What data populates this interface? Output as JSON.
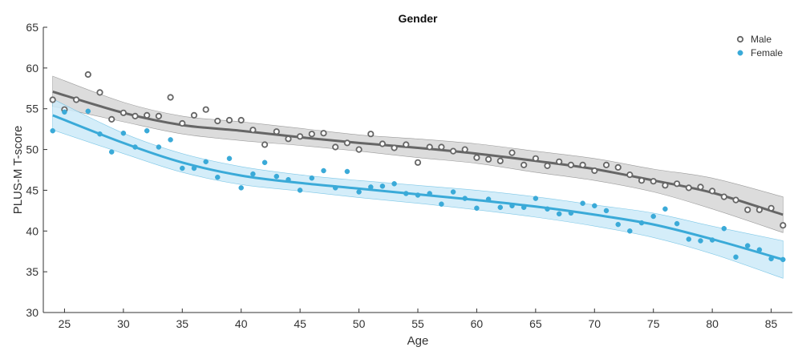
{
  "chart_data": {
    "type": "scatter",
    "title": "Gender",
    "xlabel": "Age",
    "ylabel": "PLUS-M T-score",
    "xlim": [
      23.2,
      86.8
    ],
    "ylim": [
      30,
      65
    ],
    "xticks": [
      25,
      30,
      35,
      40,
      45,
      50,
      55,
      60,
      65,
      70,
      75,
      80,
      85
    ],
    "yticks": [
      30,
      35,
      40,
      45,
      50,
      55,
      60,
      65
    ],
    "grid": false,
    "legend_position": "top-right",
    "series": [
      {
        "name": "Male",
        "color": "#666666",
        "band_color": "#d6d6d6",
        "marker": "hollow-circle",
        "points": [
          [
            24,
            56.1
          ],
          [
            25,
            54.9
          ],
          [
            26,
            56.1
          ],
          [
            27,
            59.2
          ],
          [
            28,
            57.0
          ],
          [
            29,
            53.7
          ],
          [
            30,
            54.5
          ],
          [
            31,
            54.1
          ],
          [
            32,
            54.2
          ],
          [
            33,
            54.1
          ],
          [
            34,
            56.4
          ],
          [
            35,
            53.2
          ],
          [
            36,
            54.2
          ],
          [
            37,
            54.9
          ],
          [
            38,
            53.5
          ],
          [
            39,
            53.6
          ],
          [
            40,
            53.6
          ],
          [
            41,
            52.4
          ],
          [
            42,
            50.6
          ],
          [
            43,
            52.2
          ],
          [
            44,
            51.3
          ],
          [
            45,
            51.6
          ],
          [
            46,
            51.9
          ],
          [
            47,
            52.0
          ],
          [
            48,
            50.3
          ],
          [
            49,
            50.8
          ],
          [
            50,
            50.0
          ],
          [
            51,
            51.9
          ],
          [
            52,
            50.7
          ],
          [
            53,
            50.2
          ],
          [
            54,
            50.6
          ],
          [
            55,
            48.4
          ],
          [
            56,
            50.3
          ],
          [
            57,
            50.3
          ],
          [
            58,
            49.8
          ],
          [
            59,
            50.0
          ],
          [
            60,
            49.0
          ],
          [
            61,
            48.8
          ],
          [
            62,
            48.6
          ],
          [
            63,
            49.6
          ],
          [
            64,
            48.1
          ],
          [
            65,
            48.9
          ],
          [
            66,
            48.0
          ],
          [
            67,
            48.5
          ],
          [
            68,
            48.1
          ],
          [
            69,
            48.1
          ],
          [
            70,
            47.4
          ],
          [
            71,
            48.1
          ],
          [
            72,
            47.8
          ],
          [
            73,
            46.9
          ],
          [
            74,
            46.2
          ],
          [
            75,
            46.1
          ],
          [
            76,
            45.6
          ],
          [
            77,
            45.8
          ],
          [
            78,
            45.3
          ],
          [
            79,
            45.4
          ],
          [
            80,
            44.9
          ],
          [
            81,
            44.2
          ],
          [
            82,
            43.8
          ],
          [
            83,
            42.6
          ],
          [
            84,
            42.6
          ],
          [
            85,
            42.8
          ],
          [
            86,
            40.7
          ]
        ],
        "fit": [
          [
            24,
            57.1
          ],
          [
            30,
            54.5
          ],
          [
            35,
            53.0
          ],
          [
            40,
            52.3
          ],
          [
            45,
            51.5
          ],
          [
            50,
            50.8
          ],
          [
            55,
            50.2
          ],
          [
            60,
            49.5
          ],
          [
            65,
            48.6
          ],
          [
            70,
            47.6
          ],
          [
            75,
            46.2
          ],
          [
            80,
            44.7
          ],
          [
            86,
            42.0
          ]
        ],
        "band": [
          [
            24,
            55.3,
            59.0
          ],
          [
            30,
            53.4,
            55.8
          ],
          [
            35,
            51.9,
            54.1
          ],
          [
            40,
            51.1,
            53.4
          ],
          [
            45,
            50.5,
            52.6
          ],
          [
            50,
            49.8,
            51.8
          ],
          [
            55,
            49.0,
            51.3
          ],
          [
            60,
            48.3,
            50.7
          ],
          [
            65,
            47.2,
            49.8
          ],
          [
            70,
            46.2,
            48.9
          ],
          [
            75,
            44.8,
            47.6
          ],
          [
            80,
            42.7,
            46.5
          ],
          [
            86,
            39.8,
            44.2
          ]
        ]
      },
      {
        "name": "Female",
        "color": "#3aaad8",
        "band_color": "#cdeaf8",
        "marker": "filled-circle",
        "points": [
          [
            24,
            52.3
          ],
          [
            25,
            54.6
          ],
          [
            27,
            54.7
          ],
          [
            28,
            51.9
          ],
          [
            29,
            49.7
          ],
          [
            30,
            52.0
          ],
          [
            31,
            50.3
          ],
          [
            32,
            52.3
          ],
          [
            33,
            50.3
          ],
          [
            34,
            51.2
          ],
          [
            35,
            47.7
          ],
          [
            36,
            47.7
          ],
          [
            37,
            48.5
          ],
          [
            38,
            46.6
          ],
          [
            39,
            48.9
          ],
          [
            40,
            45.3
          ],
          [
            41,
            47.0
          ],
          [
            42,
            48.4
          ],
          [
            43,
            46.7
          ],
          [
            44,
            46.3
          ],
          [
            45,
            45.0
          ],
          [
            46,
            46.5
          ],
          [
            47,
            47.4
          ],
          [
            48,
            45.3
          ],
          [
            49,
            47.3
          ],
          [
            50,
            44.8
          ],
          [
            51,
            45.4
          ],
          [
            52,
            45.5
          ],
          [
            53,
            45.8
          ],
          [
            54,
            44.6
          ],
          [
            55,
            44.4
          ],
          [
            56,
            44.6
          ],
          [
            57,
            43.3
          ],
          [
            58,
            44.8
          ],
          [
            59,
            44.0
          ],
          [
            60,
            42.8
          ],
          [
            61,
            43.9
          ],
          [
            62,
            42.9
          ],
          [
            63,
            43.1
          ],
          [
            64,
            42.9
          ],
          [
            65,
            44.0
          ],
          [
            66,
            42.7
          ],
          [
            67,
            42.1
          ],
          [
            68,
            42.2
          ],
          [
            69,
            43.4
          ],
          [
            70,
            43.1
          ],
          [
            71,
            42.5
          ],
          [
            72,
            40.8
          ],
          [
            73,
            40.0
          ],
          [
            74,
            41.0
          ],
          [
            75,
            41.8
          ],
          [
            76,
            42.7
          ],
          [
            77,
            40.9
          ],
          [
            78,
            39.0
          ],
          [
            79,
            38.8
          ],
          [
            80,
            38.9
          ],
          [
            81,
            40.3
          ],
          [
            82,
            36.8
          ],
          [
            83,
            38.2
          ],
          [
            84,
            37.7
          ],
          [
            85,
            36.6
          ],
          [
            86,
            36.5
          ]
        ],
        "fit": [
          [
            24,
            54.2
          ],
          [
            30,
            50.8
          ],
          [
            35,
            48.4
          ],
          [
            40,
            46.8
          ],
          [
            45,
            45.9
          ],
          [
            50,
            45.2
          ],
          [
            55,
            44.5
          ],
          [
            60,
            43.8
          ],
          [
            65,
            43.0
          ],
          [
            70,
            42.0
          ],
          [
            75,
            40.8
          ],
          [
            80,
            39.0
          ],
          [
            86,
            36.5
          ]
        ],
        "band": [
          [
            24,
            52.4,
            56.2
          ],
          [
            30,
            49.5,
            52.0
          ],
          [
            35,
            47.2,
            49.5
          ],
          [
            40,
            45.7,
            47.9
          ],
          [
            45,
            44.9,
            46.9
          ],
          [
            50,
            44.1,
            46.2
          ],
          [
            55,
            43.4,
            45.6
          ],
          [
            60,
            42.6,
            45.0
          ],
          [
            65,
            41.7,
            44.2
          ],
          [
            70,
            40.6,
            43.2
          ],
          [
            75,
            39.2,
            42.2
          ],
          [
            80,
            37.2,
            40.6
          ],
          [
            86,
            34.2,
            38.8
          ]
        ]
      }
    ]
  }
}
